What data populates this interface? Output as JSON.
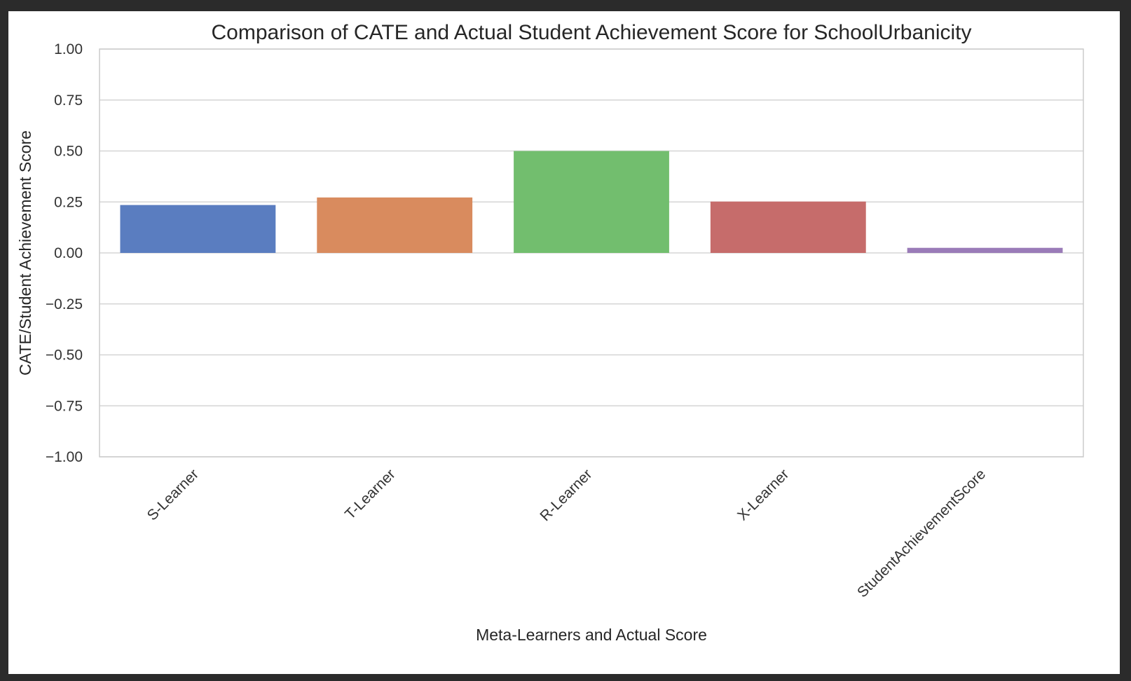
{
  "chart_data": {
    "type": "bar",
    "title": "Comparison of CATE and Actual Student Achievement Score for SchoolUrbanicity",
    "xlabel": "Meta-Learners and Actual Score",
    "ylabel": "CATE/Student Achievement Score",
    "categories": [
      "S-Learner",
      "T-Learner",
      "R-Learner",
      "X-Learner",
      "StudentAchievementScore"
    ],
    "values": [
      0.235,
      0.272,
      0.5,
      0.252,
      0.025
    ],
    "colors": [
      "#5a7dc0",
      "#d98b5e",
      "#72be6e",
      "#c66c6b",
      "#9a7bb8"
    ],
    "ylim": [
      -1.0,
      1.0
    ],
    "yticks": [
      "1.00",
      "0.75",
      "0.50",
      "0.25",
      "0.00",
      "−0.25",
      "−0.50",
      "−0.75",
      "−1.00"
    ],
    "ytick_values": [
      1.0,
      0.75,
      0.5,
      0.25,
      0.0,
      -0.25,
      -0.5,
      -0.75,
      -1.0
    ],
    "grid": true,
    "legend": "none"
  }
}
